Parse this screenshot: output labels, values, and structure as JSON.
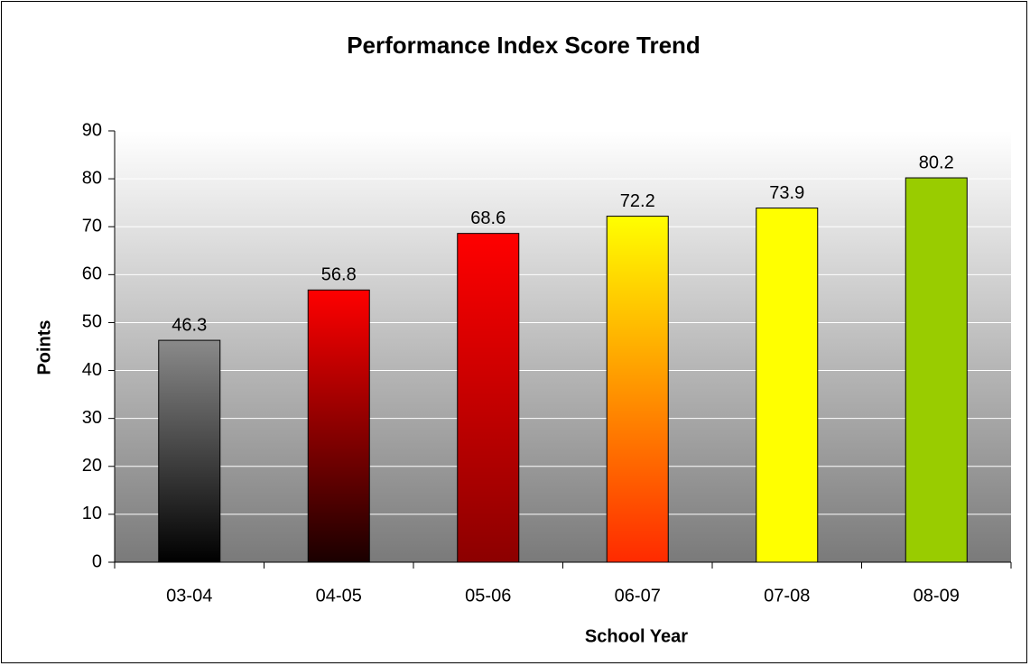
{
  "chart_data": {
    "type": "bar",
    "title": "Performance Index Score Trend",
    "x_label": "School Year",
    "y_label": "Points",
    "categories": [
      "03-04",
      "04-05",
      "05-06",
      "06-07",
      "07-08",
      "08-09"
    ],
    "values": [
      46.3,
      56.8,
      68.6,
      72.2,
      73.9,
      80.2
    ],
    "colors": [
      [
        "#8a8a8a",
        "#000000"
      ],
      [
        "#ff0000",
        "#1a0000"
      ],
      [
        "#ff0000",
        "#8c0000"
      ],
      [
        "#ffff00",
        "#ff2a00"
      ],
      [
        "#ffff00",
        "#ffff00"
      ],
      [
        "#99cc00",
        "#99cc00"
      ]
    ],
    "ylim": [
      0,
      90
    ],
    "yticks": [
      0,
      10,
      20,
      30,
      40,
      50,
      60,
      70,
      80,
      90
    ],
    "grid": true
  }
}
